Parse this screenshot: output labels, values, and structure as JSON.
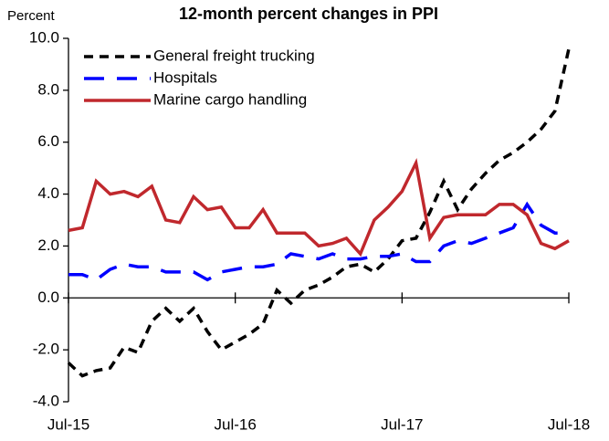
{
  "chart_data": {
    "type": "line",
    "title": "12-month percent changes in PPI",
    "y_label": "Percent",
    "categories": [
      "Jul-15",
      null,
      null,
      null,
      null,
      null,
      null,
      null,
      null,
      null,
      null,
      null,
      "Jul-16",
      null,
      null,
      null,
      null,
      null,
      null,
      null,
      null,
      null,
      null,
      null,
      "Jul-17",
      null,
      null,
      null,
      null,
      null,
      null,
      null,
      null,
      null,
      null,
      null,
      "Jul-18"
    ],
    "series": [
      {
        "name": "General freight trucking",
        "color": "#000000",
        "dash": "dashed",
        "values": [
          -2.5,
          -3.0,
          -2.8,
          -2.7,
          -1.9,
          -2.1,
          -0.9,
          -0.4,
          -0.9,
          -0.4,
          -1.3,
          -2.0,
          -1.7,
          -1.4,
          -1.0,
          0.3,
          -0.2,
          0.3,
          0.5,
          0.8,
          1.2,
          1.3,
          1.0,
          1.5,
          2.2,
          2.3,
          3.3,
          4.5,
          3.4,
          4.2,
          4.8,
          5.3,
          5.6,
          6.0,
          6.5,
          7.2,
          9.6
        ]
      },
      {
        "name": "Hospitals",
        "color": "#0000ff",
        "dash": "long-dashed",
        "values": [
          0.9,
          0.9,
          0.7,
          1.1,
          1.3,
          1.2,
          1.2,
          1.0,
          1.0,
          1.0,
          0.7,
          1.0,
          1.1,
          1.2,
          1.2,
          1.3,
          1.7,
          1.6,
          1.5,
          1.7,
          1.5,
          1.5,
          1.6,
          1.6,
          1.7,
          1.4,
          1.4,
          2.0,
          2.2,
          2.1,
          2.3,
          2.5,
          2.7,
          3.6,
          2.8,
          2.5,
          2.5
        ]
      },
      {
        "name": "Marine cargo handling",
        "color": "#c0282d",
        "dash": "solid",
        "values": [
          2.6,
          2.7,
          4.5,
          4.0,
          4.1,
          3.9,
          4.3,
          3.0,
          2.9,
          3.9,
          3.4,
          3.5,
          2.7,
          2.7,
          3.4,
          2.5,
          2.5,
          2.5,
          2.0,
          2.1,
          2.3,
          1.7,
          3.0,
          3.5,
          4.1,
          5.2,
          2.3,
          3.1,
          3.2,
          3.2,
          3.2,
          3.6,
          3.6,
          3.2,
          2.1,
          1.9,
          2.2
        ]
      }
    ],
    "ylim": [
      -4,
      10
    ],
    "yticks": [
      {
        "value": -4,
        "label": "-4.0"
      },
      {
        "value": -2,
        "label": "-2.0"
      },
      {
        "value": 0,
        "label": "0.0"
      },
      {
        "value": 2,
        "label": "2.0"
      },
      {
        "value": 4,
        "label": "4.0"
      },
      {
        "value": 6,
        "label": "6.0"
      },
      {
        "value": 8,
        "label": "8.0"
      },
      {
        "value": 10,
        "label": "10.0"
      }
    ],
    "legend": "upper left",
    "grid": false
  }
}
